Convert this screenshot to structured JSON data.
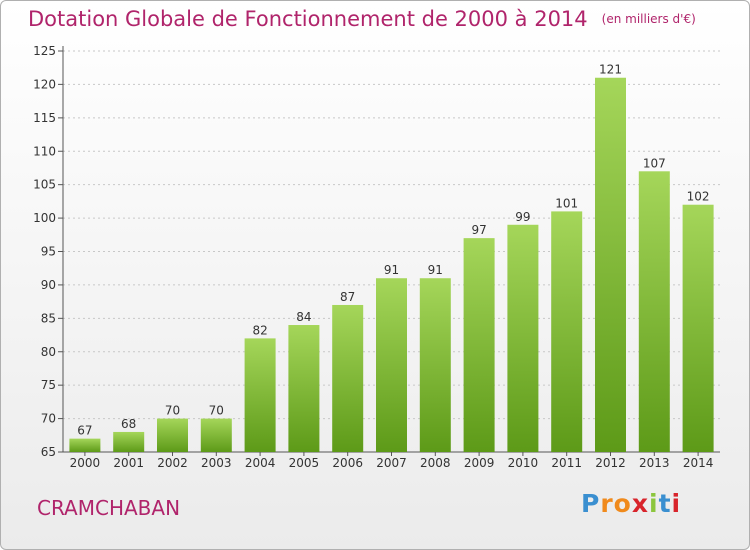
{
  "title": "Dotation Globale de Fonctionnement de 2000 à 2014",
  "subtitle": "(en milliers d'€)",
  "commune": "CRAMCHABAN",
  "logo": {
    "letters": [
      "P",
      "r",
      "o",
      "x",
      "i",
      "t",
      "i"
    ],
    "colors": [
      "#3a8fd0",
      "#f08a1c",
      "#f08a1c",
      "#d8242b",
      "#8cc63e",
      "#3a8fd0",
      "#d8242b"
    ]
  },
  "colors": {
    "title": "#b0246b",
    "bar_light": "#a5d65a",
    "bar_dark": "#5d9a18",
    "grid": "#c8c8c8",
    "axis_text": "#333333"
  },
  "chart_data": {
    "type": "bar",
    "categories": [
      "2000",
      "2001",
      "2002",
      "2003",
      "2004",
      "2005",
      "2006",
      "2007",
      "2008",
      "2009",
      "2010",
      "2011",
      "2012",
      "2013",
      "2014"
    ],
    "values": [
      67,
      68,
      70,
      70,
      82,
      84,
      87,
      91,
      91,
      97,
      99,
      101,
      121,
      107,
      102
    ],
    "ylim": [
      65,
      125
    ],
    "yticks": [
      65,
      70,
      75,
      80,
      85,
      90,
      95,
      100,
      105,
      110,
      115,
      120,
      125
    ],
    "grid": true,
    "xlabel": "",
    "ylabel": ""
  }
}
